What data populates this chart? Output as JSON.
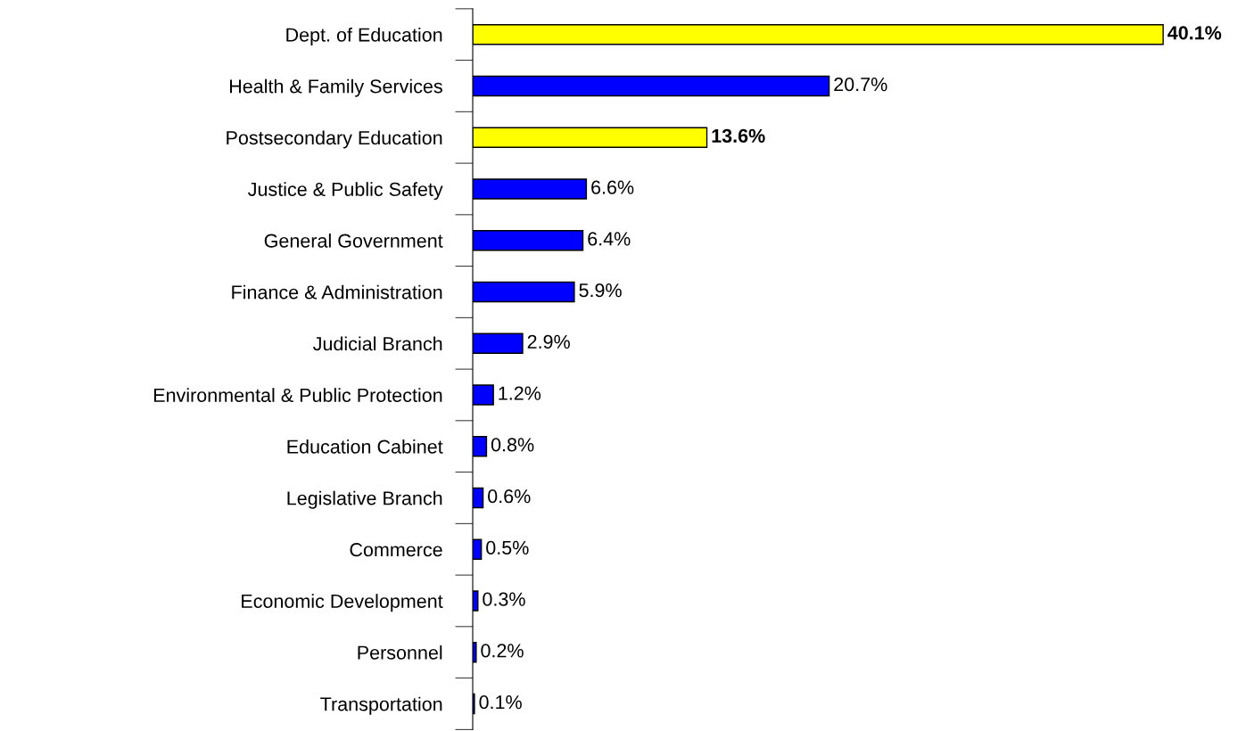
{
  "chart_data": {
    "type": "bar",
    "orientation": "horizontal",
    "categories": [
      "Dept. of Education",
      "Health & Family Services",
      "Postsecondary Education",
      "Justice & Public Safety",
      "General Government",
      "Finance & Administration",
      "Judicial Branch",
      "Environmental & Public Protection",
      "Education Cabinet",
      "Legislative Branch",
      "Commerce",
      "Economic Development",
      "Personnel",
      "Transportation"
    ],
    "values": [
      40.1,
      20.7,
      13.6,
      6.6,
      6.4,
      5.9,
      2.9,
      1.2,
      0.8,
      0.6,
      0.5,
      0.3,
      0.2,
      0.1
    ],
    "colors": [
      "#ffff00",
      "#0000ff",
      "#ffff00",
      "#0000ff",
      "#0000ff",
      "#0000ff",
      "#0000ff",
      "#0000ff",
      "#0000ff",
      "#0000ff",
      "#0000ff",
      "#0000ff",
      "#0000ff",
      "#0000ff"
    ],
    "value_labels": [
      "40.1%",
      "20.7%",
      "13.6%",
      "6.6%",
      "6.4%",
      "5.9%",
      "2.9%",
      "1.2%",
      "0.8%",
      "0.6%",
      "0.5%",
      "0.3%",
      "0.2%",
      "0.1%"
    ],
    "grid": false,
    "legend": false
  }
}
